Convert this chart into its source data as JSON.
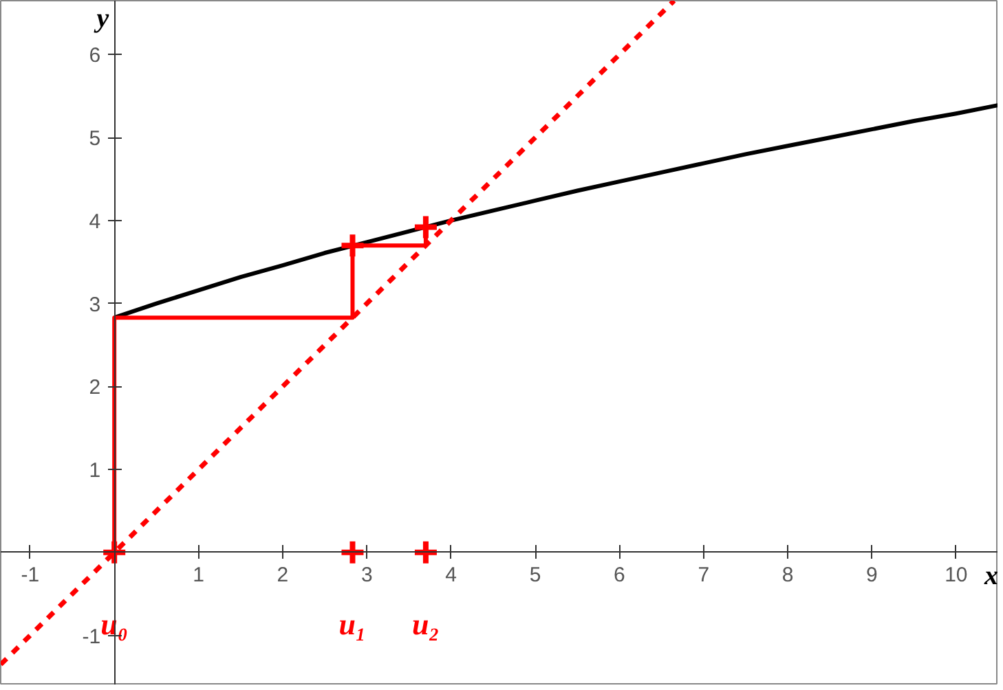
{
  "chart_data": {
    "type": "line",
    "xlabel": "x",
    "ylabel": "y",
    "xlim": [
      -1.35,
      10.5
    ],
    "ylim": [
      -1.6,
      6.65
    ],
    "xticks": [
      -1,
      1,
      2,
      3,
      4,
      5,
      6,
      7,
      8,
      9,
      10
    ],
    "yticks": [
      -1,
      1,
      2,
      3,
      4,
      5,
      6
    ],
    "grid": false,
    "series": [
      {
        "color": "#000000",
        "line_style": "solid",
        "x": [
          0,
          0.5,
          1,
          1.5,
          2,
          2.5,
          3,
          3.5,
          4,
          4.5,
          5,
          5.5,
          6,
          6.5,
          7,
          7.5,
          8,
          8.5,
          9,
          9.5,
          10,
          10.5
        ],
        "values": [
          2.83,
          3.0,
          3.16,
          3.32,
          3.46,
          3.61,
          3.74,
          3.87,
          4.0,
          4.12,
          4.24,
          4.36,
          4.47,
          4.58,
          4.69,
          4.8,
          4.9,
          5.0,
          5.1,
          5.2,
          5.29,
          5.39
        ]
      },
      {
        "color": "#ff0000",
        "line_style": "dashed",
        "x": [
          -1.35,
          6.65
        ],
        "values": [
          -1.35,
          6.65
        ]
      },
      {
        "color": "#ff0000",
        "line_style": "solid",
        "x": [
          0,
          0,
          2.83,
          2.83,
          3.7,
          3.7
        ],
        "values": [
          0,
          2.83,
          2.83,
          3.7,
          3.7,
          3.92
        ]
      },
      {
        "type": "scatter",
        "marker": "cross",
        "color": "#ff0000",
        "x": [
          0,
          2.83,
          3.7,
          2.83,
          3.7
        ],
        "values": [
          0,
          0,
          0,
          3.7,
          3.92
        ]
      }
    ],
    "annotations": [
      {
        "text": "u₀",
        "x": 0,
        "y": 0
      },
      {
        "text": "u₁",
        "x": 2.83,
        "y": 0
      },
      {
        "text": "u₂",
        "x": 3.7,
        "y": 0
      }
    ]
  }
}
